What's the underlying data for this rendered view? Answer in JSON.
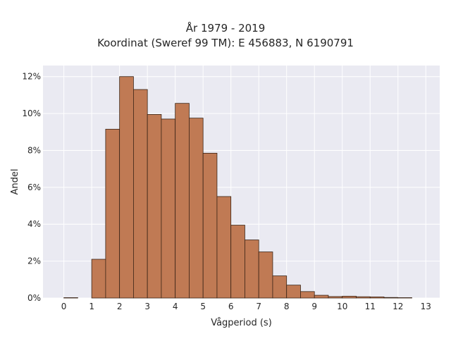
{
  "chart_data": {
    "type": "bar",
    "title_lines": [
      "År 1979 - 2019",
      "Koordinat (Sweref 99 TM): E 456883, N 6190791"
    ],
    "xlabel": "Vågperiod (s)",
    "ylabel": "Andel",
    "x_ticks": [
      "0",
      "1",
      "2",
      "3",
      "4",
      "5",
      "6",
      "7",
      "8",
      "9",
      "10",
      "11",
      "12",
      "13"
    ],
    "y_ticks": [
      "0%",
      "2%",
      "4%",
      "6%",
      "8%",
      "10%",
      "12%"
    ],
    "xlim": [
      -0.75,
      13.5
    ],
    "ylim": [
      0,
      12.6
    ],
    "bin_width": 0.5,
    "bin_starts": [
      0,
      0.5,
      1,
      1.5,
      2,
      2.5,
      3,
      3.5,
      4,
      4.5,
      5,
      5.5,
      6,
      6.5,
      7,
      7.5,
      8,
      8.5,
      9,
      9.5,
      10,
      10.5,
      11,
      11.5,
      12,
      12.5
    ],
    "values": [
      0.02,
      0,
      2.1,
      9.15,
      12.0,
      11.3,
      9.95,
      9.7,
      10.55,
      9.75,
      7.85,
      5.5,
      3.95,
      3.15,
      2.5,
      1.2,
      0.7,
      0.35,
      0.15,
      0.08,
      0.1,
      0.07,
      0.06,
      0.03,
      0.02,
      0
    ],
    "grid": true,
    "colors": {
      "bar": "#c07a54",
      "edge": "#3a2416",
      "plot_bg": "#eaeaf2",
      "grid": "#ffffff"
    }
  }
}
